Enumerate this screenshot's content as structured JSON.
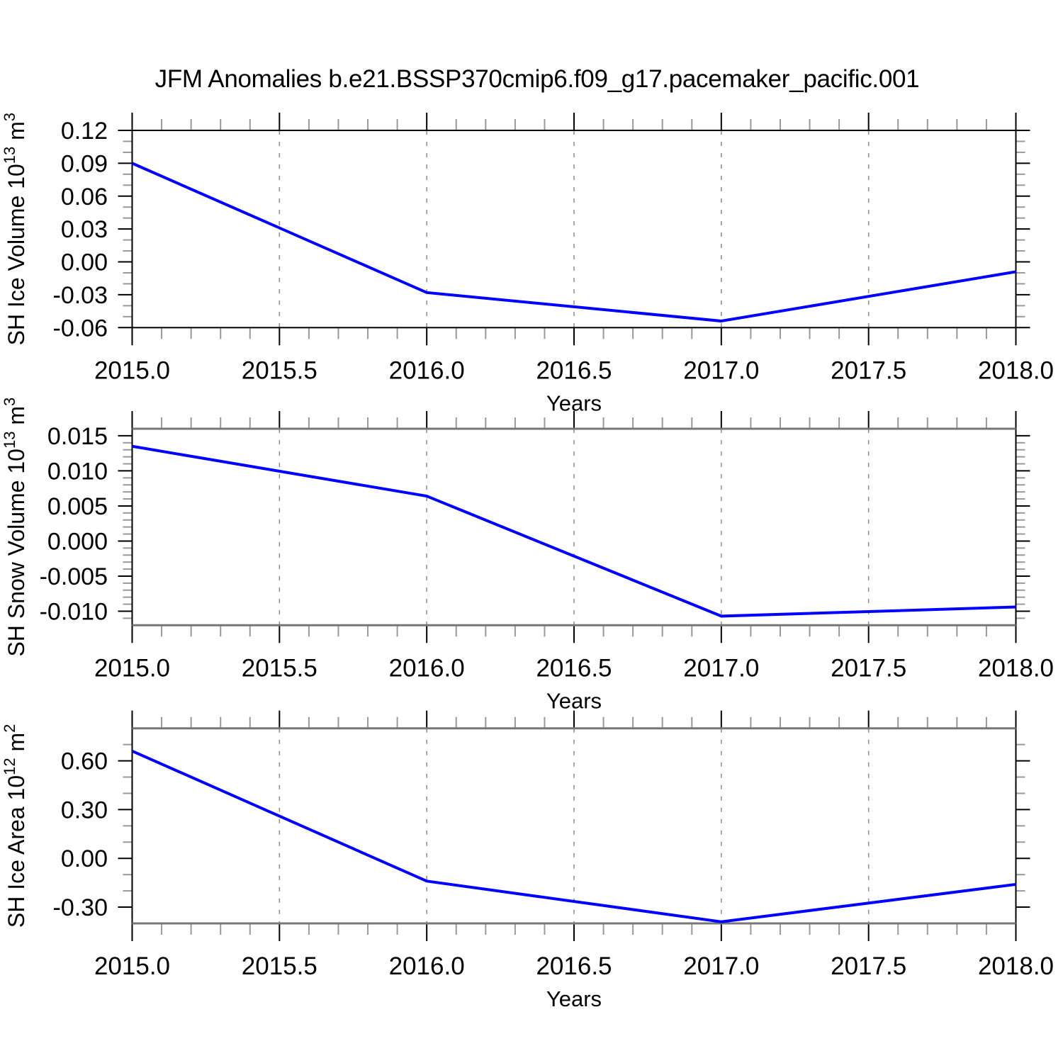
{
  "title": "JFM Anomalies b.e21.BSSP370cmip6.f09_g17.pacemaker_pacific.001",
  "line_color": "#0000ff",
  "x_axis": {
    "label": "Years",
    "tick_labels": [
      "2015.0",
      "2015.5",
      "2016.0",
      "2016.5",
      "2017.0",
      "2017.5",
      "2018.0"
    ],
    "tick_values": [
      2015.0,
      2015.5,
      2016.0,
      2016.5,
      2017.0,
      2017.5,
      2018.0
    ],
    "minor_step": 0.1,
    "range": [
      2015.0,
      2018.0
    ],
    "grid": "dashed vertical gray lines at interior major ticks"
  },
  "chart_data": [
    {
      "type": "line",
      "name": "sh-ice-volume",
      "title": "JFM Anomalies b.e21.BSSP370cmip6.f09_g17.pacemaker_pacific.001",
      "xlabel": "Years",
      "ylabel": "SH Ice Volume 10^13 m^3",
      "ylabel_parts": [
        {
          "text": "SH Ice Volume 10"
        },
        {
          "sup": "13"
        },
        {
          "text": " m"
        },
        {
          "sup": "3"
        }
      ],
      "x": [
        2015.0,
        2016.0,
        2017.0,
        2018.0
      ],
      "y": [
        0.09,
        -0.028,
        -0.054,
        -0.009
      ],
      "xlim": [
        2015.0,
        2018.0
      ],
      "ylim": [
        -0.06,
        0.12
      ],
      "ytick_labels": [
        "0.12",
        "0.09",
        "0.06",
        "0.03",
        "0.00",
        "-0.03",
        "-0.06"
      ],
      "ytick_values": [
        0.12,
        0.09,
        0.06,
        0.03,
        0.0,
        -0.03,
        -0.06
      ],
      "yminor_step": 0.01,
      "legend": "none"
    },
    {
      "type": "line",
      "name": "sh-snow-volume",
      "xlabel": "Years",
      "ylabel": "SH Snow Volume 10^13 m^3",
      "ylabel_parts": [
        {
          "text": "SH Snow Volume 10"
        },
        {
          "sup": "13"
        },
        {
          "text": " m"
        },
        {
          "sup": "3"
        }
      ],
      "x": [
        2015.0,
        2016.0,
        2017.0,
        2018.0
      ],
      "y": [
        0.0135,
        0.0064,
        -0.0107,
        -0.0094
      ],
      "xlim": [
        2015.0,
        2018.0
      ],
      "ylim": [
        -0.012,
        0.016
      ],
      "ytick_labels": [
        "0.015",
        "0.010",
        "0.005",
        "0.000",
        "-0.005",
        "-0.010"
      ],
      "ytick_values": [
        0.015,
        0.01,
        0.005,
        0.0,
        -0.005,
        -0.01
      ],
      "yminor_step": 0.001,
      "legend": "none"
    },
    {
      "type": "line",
      "name": "sh-ice-area",
      "xlabel": "Years",
      "ylabel": "SH Ice Area 10^12 m^2",
      "ylabel_parts": [
        {
          "text": "SH Ice Area 10"
        },
        {
          "sup": "12"
        },
        {
          "text": " m"
        },
        {
          "sup": "2"
        }
      ],
      "x": [
        2015.0,
        2016.0,
        2017.0,
        2018.0
      ],
      "y": [
        0.66,
        -0.14,
        -0.39,
        -0.16
      ],
      "xlim": [
        2015.0,
        2018.0
      ],
      "ylim": [
        -0.4,
        0.8
      ],
      "ytick_labels": [
        "0.60",
        "0.30",
        "0.00",
        "-0.30"
      ],
      "ytick_values": [
        0.6,
        0.3,
        0.0,
        -0.3
      ],
      "yminor_step": 0.1,
      "legend": "none"
    }
  ]
}
